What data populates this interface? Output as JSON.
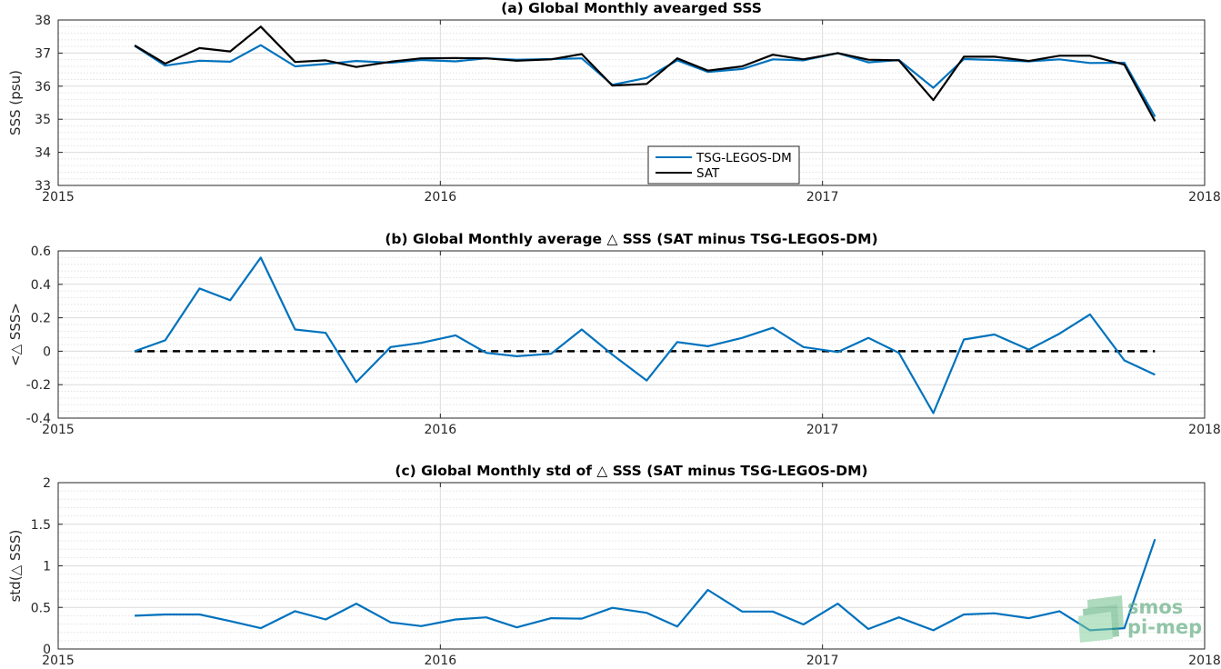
{
  "colors": {
    "tsg": "#0072BD",
    "sat": "#000000",
    "zero_line": "#000000",
    "logo": "#5aa87a"
  },
  "logo": {
    "line1": "smos",
    "line2": "pi-mep",
    "icon": "smos-pimep-logo-icon"
  },
  "chart_data": [
    {
      "type": "line",
      "title": "(a) Global Monthly avearged SSS",
      "ylabel": "SSS (psu)",
      "xlim": [
        2015,
        2018
      ],
      "ylim": [
        33,
        38
      ],
      "xticks": [
        2015,
        2016,
        2017,
        2018
      ],
      "xticklabels": [
        "2015",
        "2016",
        "2017",
        "2018"
      ],
      "yticks": [
        33,
        34,
        35,
        36,
        37,
        38
      ],
      "yticklabels": [
        "33",
        "34",
        "35",
        "36",
        "37",
        "38"
      ],
      "grid": true,
      "minor_grid": true,
      "legend_position": "bottom-center",
      "x": [
        2015.2,
        2015.28,
        2015.37,
        2015.45,
        2015.53,
        2015.62,
        2015.7,
        2015.78,
        2015.87,
        2015.95,
        2016.04,
        2016.12,
        2016.2,
        2016.29,
        2016.37,
        2016.45,
        2016.54,
        2016.62,
        2016.7,
        2016.79,
        2016.87,
        2016.95,
        2017.04,
        2017.12,
        2017.2,
        2017.29,
        2017.37,
        2017.45,
        2017.54,
        2017.62,
        2017.7,
        2017.79,
        2017.87
      ],
      "series": [
        {
          "name": "TSG-LEGOS-DM",
          "color": "#0072BD",
          "values": [
            37.22,
            36.62,
            36.77,
            36.74,
            37.24,
            36.6,
            36.67,
            36.76,
            36.71,
            36.79,
            36.75,
            36.84,
            36.8,
            36.82,
            36.84,
            36.04,
            36.25,
            36.78,
            36.43,
            36.52,
            36.81,
            36.78,
            37.0,
            36.72,
            36.79,
            35.95,
            36.82,
            36.79,
            36.75,
            36.81,
            36.7,
            36.71,
            35.08
          ]
        },
        {
          "name": "SAT",
          "color": "#000000",
          "values": [
            37.23,
            36.68,
            37.15,
            37.05,
            37.8,
            36.73,
            36.78,
            36.58,
            36.74,
            36.84,
            36.85,
            36.84,
            36.77,
            36.81,
            36.97,
            36.02,
            36.07,
            36.84,
            36.47,
            36.6,
            36.95,
            36.81,
            37.0,
            36.8,
            36.78,
            35.58,
            36.89,
            36.89,
            36.76,
            36.92,
            36.92,
            36.65,
            34.94
          ]
        }
      ]
    },
    {
      "type": "line",
      "title": "(b) Global Monthly average △ SSS (SAT minus TSG-LEGOS-DM)",
      "ylabel": "<△ SSS>",
      "xlim": [
        2015,
        2018
      ],
      "ylim": [
        -0.4,
        0.6
      ],
      "xticks": [
        2015,
        2016,
        2017,
        2018
      ],
      "xticklabels": [
        "2015",
        "2016",
        "2017",
        "2018"
      ],
      "yticks": [
        -0.4,
        -0.2,
        0,
        0.2,
        0.4,
        0.6
      ],
      "yticklabels": [
        "-0.4",
        "-0.2",
        "0",
        "0.2",
        "0.4",
        "0.6"
      ],
      "grid": true,
      "minor_grid": true,
      "reference_line": {
        "y": 0,
        "style": "dashed",
        "color": "#000000",
        "x_range": [
          2015.2,
          2017.87
        ]
      },
      "x": [
        2015.2,
        2015.28,
        2015.37,
        2015.45,
        2015.53,
        2015.62,
        2015.7,
        2015.78,
        2015.87,
        2015.95,
        2016.04,
        2016.12,
        2016.2,
        2016.29,
        2016.37,
        2016.45,
        2016.54,
        2016.62,
        2016.7,
        2016.79,
        2016.87,
        2016.95,
        2017.04,
        2017.12,
        2017.2,
        2017.29,
        2017.37,
        2017.45,
        2017.54,
        2017.62,
        2017.7,
        2017.79,
        2017.87
      ],
      "series": [
        {
          "color": "#0072BD",
          "values": [
            0.0,
            0.065,
            0.375,
            0.305,
            0.56,
            0.13,
            0.11,
            -0.185,
            0.025,
            0.05,
            0.095,
            -0.01,
            -0.03,
            -0.015,
            0.13,
            -0.02,
            -0.175,
            0.055,
            0.03,
            0.08,
            0.14,
            0.025,
            -0.005,
            0.08,
            -0.01,
            -0.37,
            0.07,
            0.1,
            0.01,
            0.105,
            0.22,
            -0.055,
            -0.14
          ]
        }
      ]
    },
    {
      "type": "line",
      "title": "(c) Global Monthly std of △ SSS (SAT minus TSG-LEGOS-DM)",
      "ylabel": "std(△ SSS)",
      "xlim": [
        2015,
        2018
      ],
      "ylim": [
        0,
        2
      ],
      "xticks": [
        2015,
        2016,
        2017,
        2018
      ],
      "xticklabels": [
        "2015",
        "2016",
        "2017",
        "2018"
      ],
      "yticks": [
        0,
        0.5,
        1,
        1.5,
        2
      ],
      "yticklabels": [
        "0",
        "0.5",
        "1",
        "1.5",
        "2"
      ],
      "grid": true,
      "minor_grid": true,
      "x": [
        2015.2,
        2015.28,
        2015.37,
        2015.45,
        2015.53,
        2015.62,
        2015.7,
        2015.78,
        2015.87,
        2015.95,
        2016.04,
        2016.12,
        2016.2,
        2016.29,
        2016.37,
        2016.45,
        2016.54,
        2016.62,
        2016.7,
        2016.79,
        2016.87,
        2016.95,
        2017.04,
        2017.12,
        2017.2,
        2017.29,
        2017.37,
        2017.45,
        2017.54,
        2017.62,
        2017.7,
        2017.79,
        2017.87
      ],
      "series": [
        {
          "color": "#0072BD",
          "values": [
            0.4,
            0.415,
            0.415,
            0.335,
            0.25,
            0.455,
            0.355,
            0.545,
            0.32,
            0.275,
            0.355,
            0.38,
            0.26,
            0.37,
            0.365,
            0.495,
            0.435,
            0.27,
            0.71,
            0.45,
            0.45,
            0.295,
            0.545,
            0.24,
            0.38,
            0.225,
            0.415,
            0.43,
            0.37,
            0.455,
            0.225,
            0.25,
            1.32
          ]
        }
      ]
    }
  ]
}
